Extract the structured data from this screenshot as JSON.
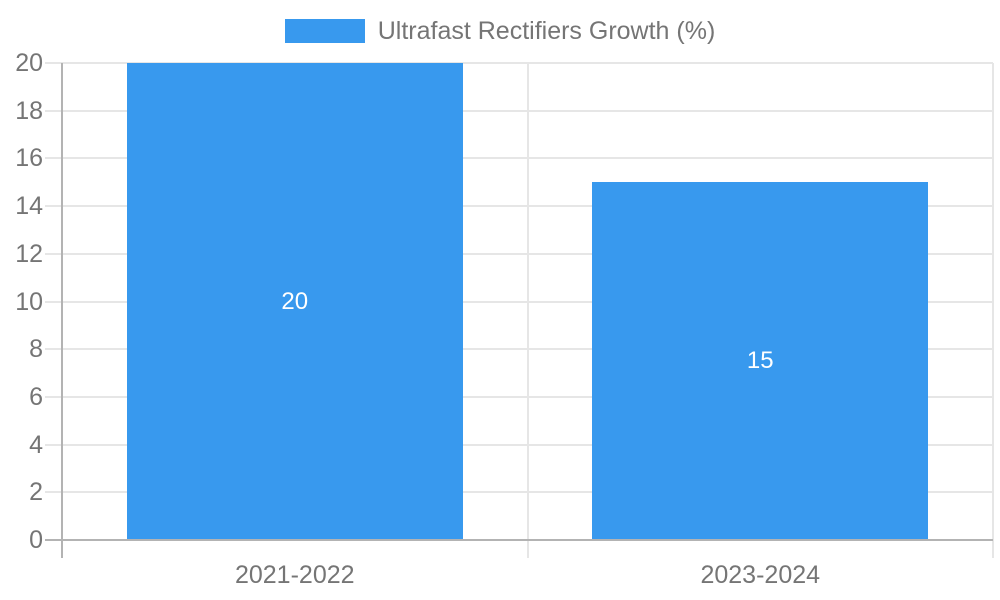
{
  "legend": {
    "label": "Ultrafast Rectifiers Growth (%)"
  },
  "chart_data": {
    "type": "bar",
    "categories": [
      "2021-2022",
      "2023-2024"
    ],
    "series": [
      {
        "name": "Ultrafast Rectifiers Growth (%)",
        "values": [
          20,
          15
        ]
      }
    ],
    "data_labels": [
      "20",
      "15"
    ],
    "xlabel": "",
    "ylabel": "",
    "ylim": [
      0,
      20
    ],
    "yticks": [
      0,
      2,
      4,
      6,
      8,
      10,
      12,
      14,
      16,
      18,
      20
    ],
    "grid": true,
    "legend_position": "top-center",
    "colors": {
      "bar": "#3899ee",
      "axis_line": "#b3b3b3",
      "gridline": "#e6e6e6",
      "tick_label": "#757575",
      "data_label": "#ffffff",
      "background": "#ffffff"
    }
  }
}
